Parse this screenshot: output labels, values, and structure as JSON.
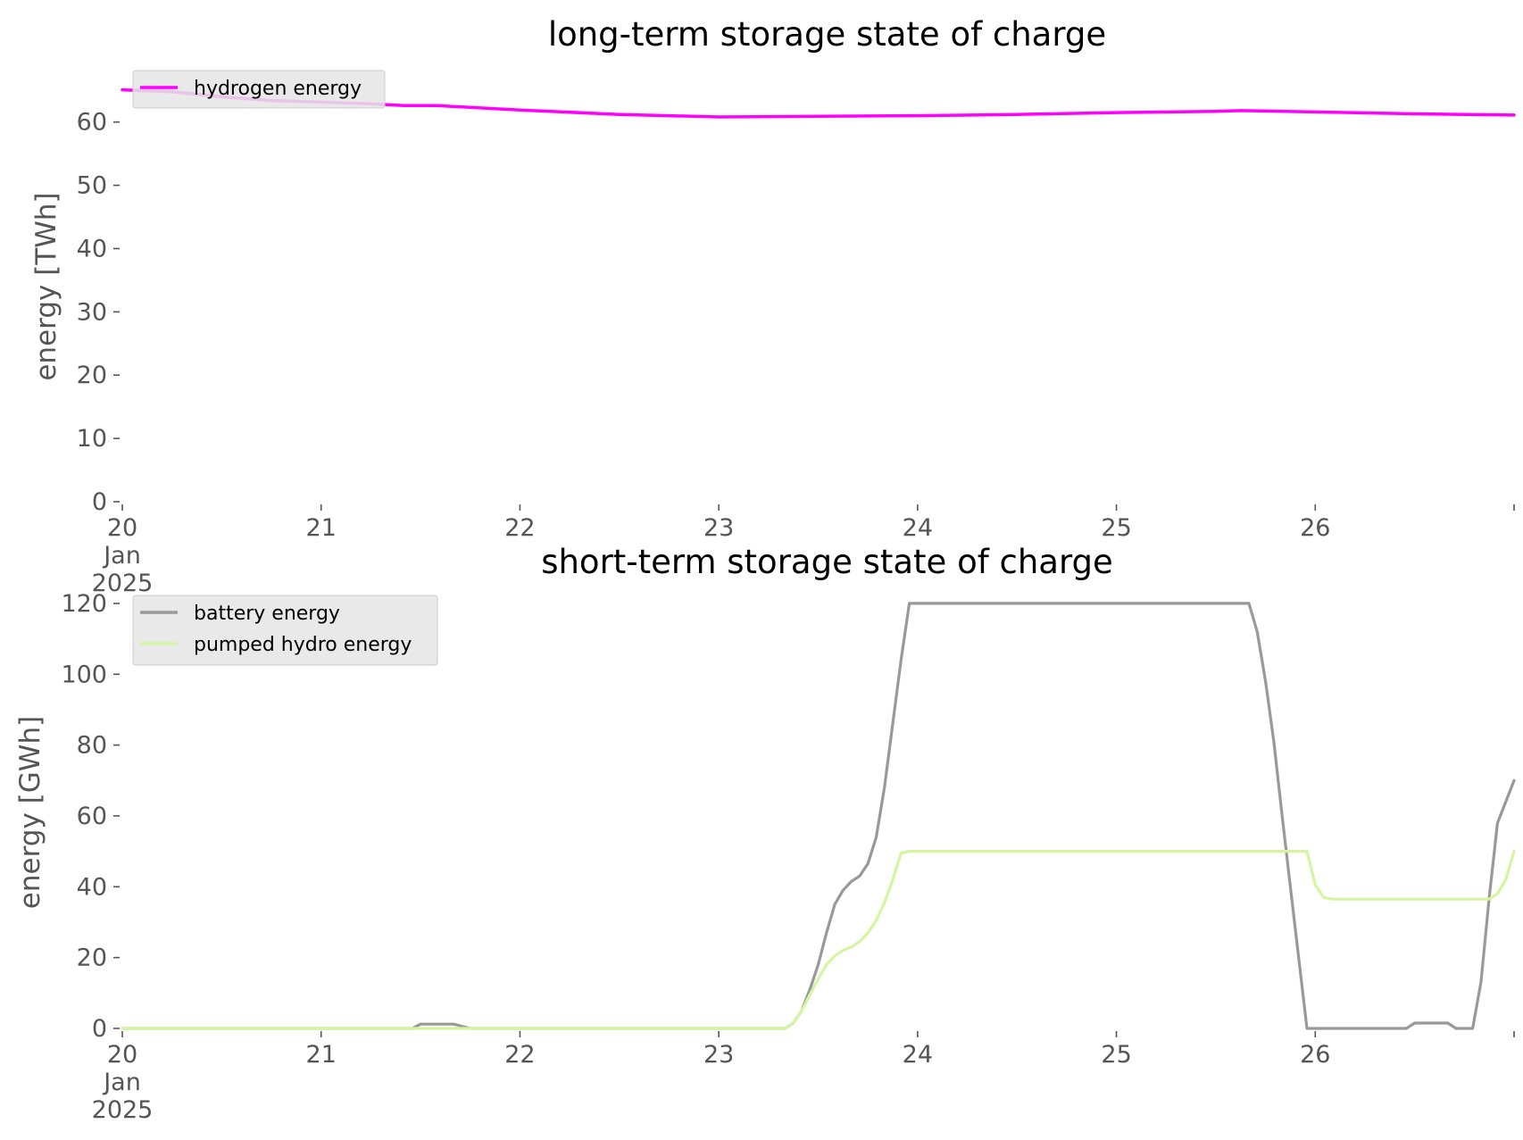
{
  "chart_data": [
    {
      "type": "line",
      "title": "long-term storage state of charge",
      "xlabel": "",
      "ylabel": "energy [TWh]",
      "ylim": [
        0,
        68
      ],
      "xlim": [
        "2025-01-20",
        "2025-01-27"
      ],
      "yticks": [
        0,
        10,
        20,
        30,
        40,
        50,
        60
      ],
      "xticks": [
        {
          "date": "2025-01-20",
          "lines": [
            "20",
            "Jan",
            "2025"
          ]
        },
        {
          "date": "2025-01-21",
          "lines": [
            "21"
          ]
        },
        {
          "date": "2025-01-22",
          "lines": [
            "22"
          ]
        },
        {
          "date": "2025-01-23",
          "lines": [
            "23"
          ]
        },
        {
          "date": "2025-01-24",
          "lines": [
            "24"
          ]
        },
        {
          "date": "2025-01-25",
          "lines": [
            "25"
          ]
        },
        {
          "date": "2025-01-26",
          "lines": [
            "26"
          ]
        },
        {
          "date": "2025-01-27",
          "lines": [
            ""
          ]
        }
      ],
      "grid": false,
      "legend": "top-left",
      "series": [
        {
          "name": "hydrogen energy",
          "color": "#ff00ff",
          "points": [
            [
              "2025-01-20 00:00",
              65.1
            ],
            [
              "2025-01-20 06:00",
              64.8
            ],
            [
              "2025-01-20 12:00",
              64.0
            ],
            [
              "2025-01-20 18:00",
              63.4
            ],
            [
              "2025-01-21 06:00",
              62.9
            ],
            [
              "2025-01-21 10:00",
              62.6
            ],
            [
              "2025-01-21 14:00",
              62.6
            ],
            [
              "2025-01-22 00:00",
              61.9
            ],
            [
              "2025-01-22 12:00",
              61.2
            ],
            [
              "2025-01-23 00:00",
              60.8
            ],
            [
              "2025-01-23 12:00",
              60.9
            ],
            [
              "2025-01-24 00:00",
              61.0
            ],
            [
              "2025-01-24 12:00",
              61.2
            ],
            [
              "2025-01-25 00:00",
              61.5
            ],
            [
              "2025-01-25 12:00",
              61.7
            ],
            [
              "2025-01-25 15:00",
              61.8
            ],
            [
              "2025-01-26 00:00",
              61.6
            ],
            [
              "2025-01-26 12:00",
              61.3
            ],
            [
              "2025-01-27 00:00",
              61.1
            ]
          ]
        }
      ]
    },
    {
      "type": "line",
      "title": "short-term storage state of charge",
      "xlabel": "",
      "ylabel": "energy [GWh]",
      "ylim": [
        0,
        122
      ],
      "xlim": [
        "2025-01-20",
        "2025-01-27"
      ],
      "yticks": [
        0,
        20,
        40,
        60,
        80,
        100,
        120
      ],
      "xticks": [
        {
          "date": "2025-01-20",
          "lines": [
            "20",
            "Jan",
            "2025"
          ]
        },
        {
          "date": "2025-01-21",
          "lines": [
            "21"
          ]
        },
        {
          "date": "2025-01-22",
          "lines": [
            "22"
          ]
        },
        {
          "date": "2025-01-23",
          "lines": [
            "23"
          ]
        },
        {
          "date": "2025-01-24",
          "lines": [
            "24"
          ]
        },
        {
          "date": "2025-01-25",
          "lines": [
            "25"
          ]
        },
        {
          "date": "2025-01-26",
          "lines": [
            "26"
          ]
        },
        {
          "date": "2025-01-27",
          "lines": [
            ""
          ]
        }
      ],
      "grid": false,
      "legend": "top-left",
      "series": [
        {
          "name": "battery energy",
          "color": "#999999",
          "points": [
            [
              "2025-01-20 00:00",
              0
            ],
            [
              "2025-01-21 11:00",
              0
            ],
            [
              "2025-01-21 12:00",
              1.2
            ],
            [
              "2025-01-21 16:00",
              1.2
            ],
            [
              "2025-01-21 18:00",
              0
            ],
            [
              "2025-01-23 08:00",
              0
            ],
            [
              "2025-01-23 09:00",
              1.5
            ],
            [
              "2025-01-23 10:00",
              5
            ],
            [
              "2025-01-23 11:00",
              11
            ],
            [
              "2025-01-23 12:00",
              18
            ],
            [
              "2025-01-23 13:00",
              27
            ],
            [
              "2025-01-23 14:00",
              35
            ],
            [
              "2025-01-23 15:00",
              39
            ],
            [
              "2025-01-23 16:00",
              41.5
            ],
            [
              "2025-01-23 17:00",
              43
            ],
            [
              "2025-01-23 18:00",
              46.5
            ],
            [
              "2025-01-23 19:00",
              54
            ],
            [
              "2025-01-23 20:00",
              68
            ],
            [
              "2025-01-23 21:00",
              86
            ],
            [
              "2025-01-23 22:00",
              104
            ],
            [
              "2025-01-23 23:00",
              120
            ],
            [
              "2025-01-25 16:00",
              120
            ],
            [
              "2025-01-25 17:00",
              112
            ],
            [
              "2025-01-25 18:00",
              98
            ],
            [
              "2025-01-25 19:00",
              81
            ],
            [
              "2025-01-25 20:00",
              60
            ],
            [
              "2025-01-25 21:00",
              40
            ],
            [
              "2025-01-25 22:00",
              20
            ],
            [
              "2025-01-25 23:00",
              0
            ],
            [
              "2025-01-26 11:00",
              0
            ],
            [
              "2025-01-26 12:00",
              1.5
            ],
            [
              "2025-01-26 16:00",
              1.5
            ],
            [
              "2025-01-26 17:00",
              0
            ],
            [
              "2025-01-26 19:00",
              0
            ],
            [
              "2025-01-26 20:00",
              13
            ],
            [
              "2025-01-26 21:00",
              37
            ],
            [
              "2025-01-26 22:00",
              58
            ],
            [
              "2025-01-27 00:00",
              70
            ]
          ]
        },
        {
          "name": "pumped hydro energy",
          "color": "#d6f5a0",
          "points": [
            [
              "2025-01-20 00:00",
              0
            ],
            [
              "2025-01-23 08:00",
              0
            ],
            [
              "2025-01-23 09:00",
              1.5
            ],
            [
              "2025-01-23 10:00",
              5
            ],
            [
              "2025-01-23 11:00",
              9.5
            ],
            [
              "2025-01-23 12:00",
              14
            ],
            [
              "2025-01-23 13:00",
              18
            ],
            [
              "2025-01-23 14:00",
              20.5
            ],
            [
              "2025-01-23 15:00",
              22
            ],
            [
              "2025-01-23 16:00",
              23
            ],
            [
              "2025-01-23 17:00",
              24.5
            ],
            [
              "2025-01-23 18:00",
              27
            ],
            [
              "2025-01-23 19:00",
              30.5
            ],
            [
              "2025-01-23 20:00",
              35.5
            ],
            [
              "2025-01-23 21:00",
              42
            ],
            [
              "2025-01-23 22:00",
              49.5
            ],
            [
              "2025-01-23 23:00",
              50
            ],
            [
              "2025-01-25 23:00",
              50
            ],
            [
              "2025-01-26 00:00",
              40.5
            ],
            [
              "2025-01-26 01:00",
              37
            ],
            [
              "2025-01-26 02:00",
              36.5
            ],
            [
              "2025-01-26 21:00",
              36.5
            ],
            [
              "2025-01-26 22:00",
              38
            ],
            [
              "2025-01-26 23:00",
              42
            ],
            [
              "2025-01-27 00:00",
              50
            ]
          ]
        }
      ]
    }
  ]
}
